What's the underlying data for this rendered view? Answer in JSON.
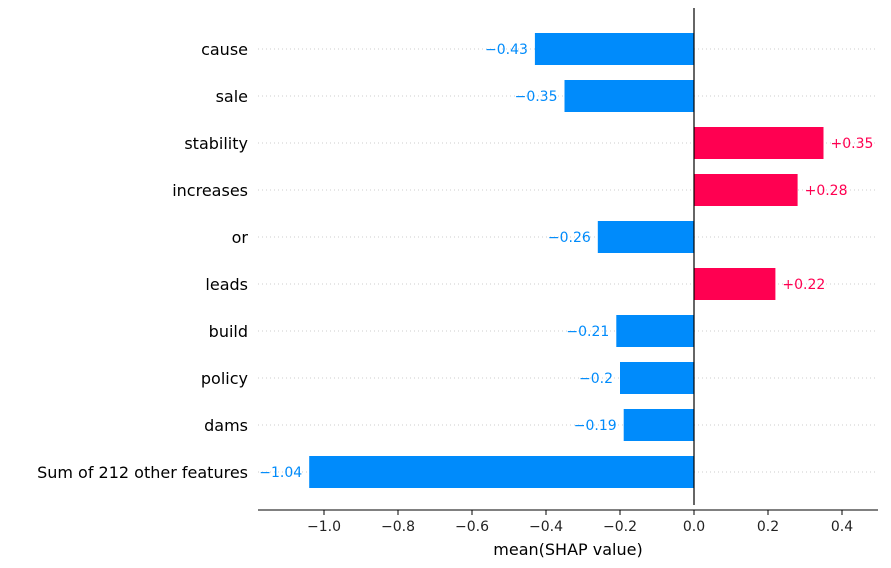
{
  "chart_data": {
    "type": "bar",
    "orientation": "horizontal",
    "categories": [
      "cause",
      "sale",
      "stability",
      "increases",
      "or",
      "leads",
      "build",
      "policy",
      "dams",
      "Sum of 212 other features"
    ],
    "values": [
      -0.43,
      -0.35,
      0.35,
      0.28,
      -0.26,
      0.22,
      -0.21,
      -0.2,
      -0.19,
      -1.04
    ],
    "value_labels": [
      "−0.43",
      "−0.35",
      "+0.35",
      "+0.28",
      "−0.26",
      "+0.22",
      "−0.21",
      "−0.2",
      "−0.19",
      "−1.04"
    ],
    "xlabel": "mean(SHAP value)",
    "xlim": [
      -1.17,
      0.5
    ],
    "xticks": [
      -1.0,
      -0.8,
      -0.6,
      -0.4,
      -0.2,
      0.0,
      0.2,
      0.4
    ],
    "xtick_labels": [
      "−1.0",
      "−0.8",
      "−0.6",
      "−0.4",
      "−0.2",
      "0.0",
      "0.2",
      "0.4"
    ],
    "grid": "horizontal dotted",
    "colors": {
      "positive": "#ff0051",
      "negative": "#008bfb",
      "zero_line": "#000000",
      "grid": "#cccccc"
    }
  }
}
